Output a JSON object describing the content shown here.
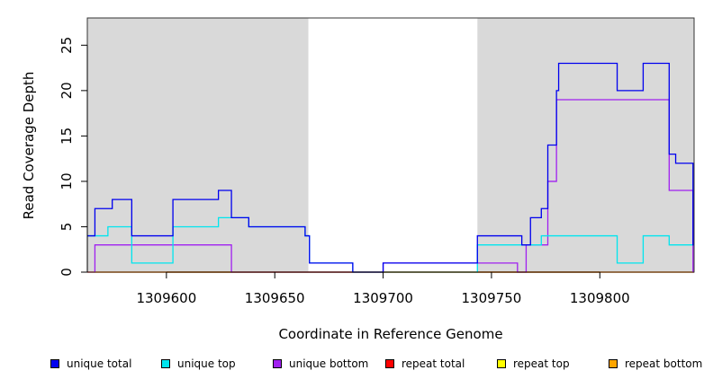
{
  "chart_data": {
    "type": "line",
    "xlabel": "Coordinate in Reference Genome",
    "ylabel": "Read Coverage Depth",
    "xlim": [
      1309563.5,
      1309843.5
    ],
    "ylim": [
      0,
      28
    ],
    "x_ticks": [
      1309600,
      1309650,
      1309700,
      1309750,
      1309800
    ],
    "y_ticks": [
      0,
      5,
      10,
      15,
      20,
      25
    ],
    "grid": false,
    "legend_position": "bottom",
    "shaded_regions": [
      {
        "x0": 1309563.5,
        "x1": 1309665.5,
        "color": "#d9d9d9"
      },
      {
        "x0": 1309743.5,
        "x1": 1309843.5,
        "color": "#d9d9d9"
      }
    ],
    "series": [
      {
        "name": "unique total",
        "color": "#0000ee",
        "steps": [
          [
            1309563.5,
            4
          ],
          [
            1309567,
            7
          ],
          [
            1309575,
            8
          ],
          [
            1309584,
            4
          ],
          [
            1309603,
            8
          ],
          [
            1309624,
            9
          ],
          [
            1309630,
            6
          ],
          [
            1309638,
            5
          ],
          [
            1309664,
            4
          ],
          [
            1309666,
            1
          ],
          [
            1309686,
            0
          ],
          [
            1309700,
            1
          ],
          [
            1309743.5,
            4
          ],
          [
            1309764,
            3
          ],
          [
            1309768,
            6
          ],
          [
            1309773,
            7
          ],
          [
            1309776,
            14
          ],
          [
            1309780,
            20
          ],
          [
            1309781,
            23
          ],
          [
            1309808,
            20
          ],
          [
            1309820,
            23
          ],
          [
            1309832,
            13
          ],
          [
            1309835,
            12
          ],
          [
            1309843,
            3
          ],
          [
            1309843.5,
            3
          ]
        ]
      },
      {
        "name": "unique top",
        "color": "#00e5ee",
        "steps": [
          [
            1309563.5,
            4
          ],
          [
            1309573,
            5
          ],
          [
            1309584,
            1
          ],
          [
            1309603,
            5
          ],
          [
            1309624,
            6
          ],
          [
            1309630,
            6
          ],
          [
            1309638,
            5
          ],
          [
            1309664,
            4
          ],
          [
            1309666,
            1
          ],
          [
            1309686,
            0
          ],
          [
            1309743.5,
            3
          ],
          [
            1309764,
            3
          ],
          [
            1309768,
            3
          ],
          [
            1309773,
            4
          ],
          [
            1309808,
            1
          ],
          [
            1309820,
            4
          ],
          [
            1309832,
            3
          ],
          [
            1309843.5,
            3
          ]
        ]
      },
      {
        "name": "unique bottom",
        "color": "#a020f0",
        "steps": [
          [
            1309563.5,
            0
          ],
          [
            1309567,
            3
          ],
          [
            1309630,
            0
          ],
          [
            1309700,
            1
          ],
          [
            1309743.5,
            1
          ],
          [
            1309762,
            0
          ],
          [
            1309766,
            3
          ],
          [
            1309776,
            10
          ],
          [
            1309780,
            19
          ],
          [
            1309832,
            9
          ],
          [
            1309843,
            0
          ],
          [
            1309843.5,
            0
          ]
        ]
      },
      {
        "name": "repeat total",
        "color": "#ff0000",
        "steps": [
          [
            1309563.5,
            0
          ],
          [
            1309843.5,
            0
          ]
        ]
      },
      {
        "name": "repeat top",
        "color": "#ffff00",
        "steps": [
          [
            1309563.5,
            0
          ],
          [
            1309843.5,
            0
          ]
        ]
      },
      {
        "name": "repeat bottom",
        "color": "#ffa500",
        "steps": [
          [
            1309563.5,
            0
          ],
          [
            1309843.5,
            0
          ]
        ]
      }
    ]
  }
}
